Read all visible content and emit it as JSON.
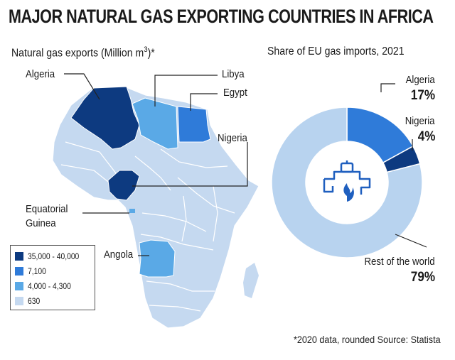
{
  "title": "MAJOR NATURAL GAS EXPORTING COUNTRIES IN AFRICA",
  "map": {
    "subtitle_prefix": "Natural gas exports (Million m",
    "subtitle_sup": "3",
    "subtitle_suffix": ")*",
    "labels": {
      "algeria": "Algeria",
      "libya": "Libya",
      "egypt": "Egypt",
      "nigeria": "Nigeria",
      "eq_guinea_line1": "Equatorial",
      "eq_guinea_line2": "Guinea",
      "angola": "Angola"
    },
    "legend": [
      {
        "label": "35,000 - 40,000",
        "color": "#0d3a80"
      },
      {
        "label": "7,100",
        "color": "#2f7bd9"
      },
      {
        "label": "4,000 - 4,300",
        "color": "#5aa9e6"
      },
      {
        "label": "630",
        "color": "#c5d9f0"
      }
    ]
  },
  "chart_data": {
    "type": "pie",
    "title": "Share of EU gas imports, 2021",
    "slices": [
      {
        "label": "Algeria",
        "value": 17,
        "value_label": "17%",
        "color": "#2f7bd9"
      },
      {
        "label": "Nigeria",
        "value": 4,
        "value_label": "4%",
        "color": "#0d3a80"
      },
      {
        "label": "Rest of the world",
        "value": 79,
        "value_label": "79%",
        "color": "#b8d3ef"
      }
    ]
  },
  "footnote": "*2020 data, rounded Source: Statista"
}
